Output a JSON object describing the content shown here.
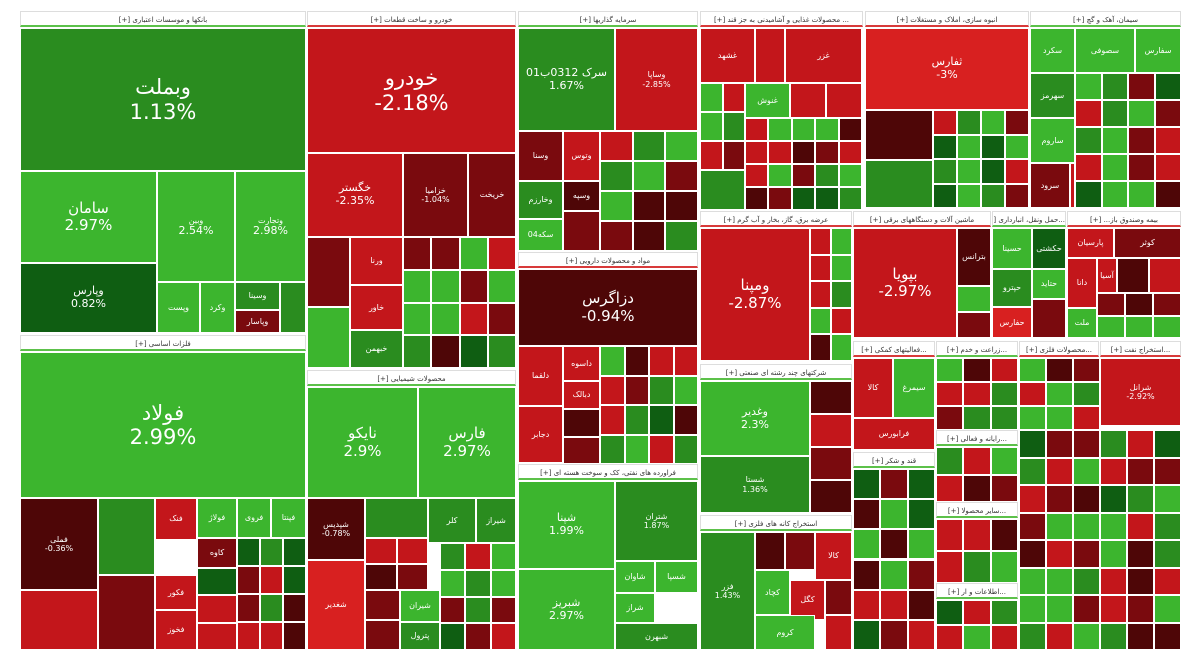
{
  "colors": {
    "bright_green": "#3cb52e",
    "green": "#2a8c1f",
    "dark_green": "#0f5e12",
    "red": "#c3161b",
    "bright_red": "#d82020",
    "dark_red": "#7a0a0e",
    "maroon": "#4e0607"
  },
  "sectors": {
    "banks": "بانکها و موسسات اعتباری [+]",
    "auto": "خودرو و ساخت قطعات [+]",
    "invest": "سرمایه گذاریها [+]",
    "food": "... محصولات غذایی و آشامیدنی به جز قند [+]",
    "realestate": "انبوه سازی، املاک و مستغلات [+]",
    "cement": "سیمان، آهک و گچ [+]",
    "metals": "فلزات اساسی [+]",
    "chem": "محصولات شیمیایی [+]",
    "pharma": "مواد و محصولات دارویی [+]",
    "oil": "فراورده های نفتی، کک و سوخت هسته ای [+]",
    "power": "عرضه برق، گاز، بخار و آب گرم [+]",
    "machinery": "ماشین آلات و دستگاههای برقی [+]",
    "transport": "...حمل ونقل، انبارداری [+]",
    "insurance": "بیمه وصندوق باز... [+]",
    "multi": "شرکتهای چند رشته ای صنعتی [+]",
    "mining": "استخراج کانه های فلزی [+]",
    "support": "...فعالیتهای کمکی [+]",
    "farming": "...زراعت و خدم [+]",
    "metalprod": "...محصولات فلزی [+]",
    "oilext": "...استخراج نفت [+]",
    "sugar": "قند و شکر [+]",
    "other1": "...سایر محصولا [+]",
    "other2": "...رایانه و فعالی [+]",
    "telecom": "...اطلاعات و ار [+]"
  },
  "tiles": {
    "vbmellat": {
      "name": "وبملت",
      "pct": "1.13%"
    },
    "saman": {
      "name": "سامان",
      "pct": "2.97%"
    },
    "vpars": {
      "name": "وپارس",
      "pct": "0.82%"
    },
    "vbank": {
      "name": "وبین",
      "pct": "2.54%"
    },
    "vtejarat": {
      "name": "وتجارت",
      "pct": "2.98%"
    },
    "vpost": {
      "name": "وپست"
    },
    "vkard": {
      "name": "وکرد"
    },
    "vsina": {
      "name": "وسینا"
    },
    "vpasar": {
      "name": "وپاسار"
    },
    "foolad": {
      "name": "فولاد",
      "pct": "2.99%"
    },
    "fameli": {
      "name": "فملی",
      "pct": "-0.36%"
    },
    "fnak": {
      "name": "فنک"
    },
    "fkave": {
      "name": "کاوه"
    },
    "fooladj": {
      "name": "فولاژ"
    },
    "froi": {
      "name": "فروی"
    },
    "fpanta": {
      "name": "فپنتا"
    },
    "fkoor": {
      "name": "فکور"
    },
    "fkhooz": {
      "name": "فخوز"
    },
    "khodro": {
      "name": "خودرو",
      "pct": "-2.18%"
    },
    "khgostar": {
      "name": "خگستر",
      "pct": "-2.35%"
    },
    "khzamia": {
      "name": "خزامیا",
      "pct": "-1.04%"
    },
    "vrana": {
      "name": "ورنا"
    },
    "khavar": {
      "name": "خاور"
    },
    "khbahman": {
      "name": "خبهمن"
    },
    "khkhaz": {
      "name": "خریخت"
    },
    "naiko": {
      "name": "نایکو",
      "pct": "2.9%"
    },
    "fars": {
      "name": "فارس",
      "pct": "2.97%"
    },
    "shpdis": {
      "name": "شپدیس",
      "pct": "-0.78%"
    },
    "shiraz": {
      "name": "شیراز"
    },
    "kalr": {
      "name": "کلر"
    },
    "shiran": {
      "name": "شیران"
    },
    "petrol": {
      "name": "پترول"
    },
    "shsina": {
      "name": "شغدیر"
    },
    "srk": {
      "name": "سرک 0312ب01",
      "pct": "1.67%"
    },
    "vsapa": {
      "name": "وساپا",
      "pct": "-2.85%"
    },
    "vsna": {
      "name": "وسنا"
    },
    "vsepah": {
      "name": "وسپه"
    },
    "vtoos": {
      "name": "وتوس"
    },
    "vkharazm": {
      "name": "وخارزم"
    },
    "vmsrk": {
      "name": "سکه04"
    },
    "dzagros": {
      "name": "دزاگرس",
      "pct": "-0.94%"
    },
    "dtoli": {
      "name": "دلقما"
    },
    "dasvh": {
      "name": "داسوه"
    },
    "dbakh": {
      "name": "دبالک"
    },
    "djaber": {
      "name": "دجابر"
    },
    "shpna": {
      "name": "شپنا",
      "pct": "1.99%"
    },
    "shtran": {
      "name": "شتران",
      "pct": "1.87%"
    },
    "shbriz": {
      "name": "شبریز",
      "pct": "2.97%"
    },
    "shavan": {
      "name": "شاوان"
    },
    "shsepa": {
      "name": "شسپا"
    },
    "shraz": {
      "name": "شراز"
    },
    "shbhrn": {
      "name": "شبهرن"
    },
    "sfars": {
      "name": "ثفارس",
      "pct": "-3%"
    },
    "vmapna": {
      "name": "ومپنا",
      "pct": "-2.87%"
    },
    "bpoya": {
      "name": "بپویا",
      "pct": "-2.97%"
    },
    "btrans": {
      "name": "بترانس"
    },
    "hsina": {
      "name": "حسینا"
    },
    "hkashti": {
      "name": "حکشتی"
    },
    "hpetro": {
      "name": "حپترو"
    },
    "hfars": {
      "name": "حفارس"
    },
    "hkhazar": {
      "name": "حتاید"
    },
    "vkosar": {
      "name": "کوثر"
    },
    "parsian": {
      "name": "پارسیان"
    },
    "dana": {
      "name": "دانا"
    },
    "asia": {
      "name": "آسیا"
    },
    "ma": {
      "name": "ملت"
    },
    "vghadir": {
      "name": "وغدیر",
      "pct": "2.3%"
    },
    "shasta": {
      "name": "شستا",
      "pct": "1.36%"
    },
    "fzar": {
      "name": "فزر",
      "pct": "1.43%"
    },
    "kchad": {
      "name": "کچاد"
    },
    "kgol": {
      "name": "کگل"
    },
    "kroom": {
      "name": "کروم"
    },
    "kala": {
      "name": "کالا"
    },
    "shrangi": {
      "name": "شرانل",
      "pct": "-2.92%"
    },
    "kala2": {
      "name": "کالا"
    },
    "farabourse": {
      "name": "فرابورس"
    },
    "simorgh": {
      "name": "سیمرغ"
    },
    "ghsahd": {
      "name": "غشهد"
    },
    "ghnooosh": {
      "name": "غنوش"
    },
    "ghzar": {
      "name": "غزر"
    },
    "cement1": {
      "name": "سکرد"
    },
    "cement2": {
      "name": "سصوفی"
    },
    "cement3": {
      "name": "سفارس"
    },
    "cement4": {
      "name": "سهرمز"
    },
    "cement5": {
      "name": "ساروم"
    },
    "cement6": {
      "name": "سرود"
    }
  }
}
